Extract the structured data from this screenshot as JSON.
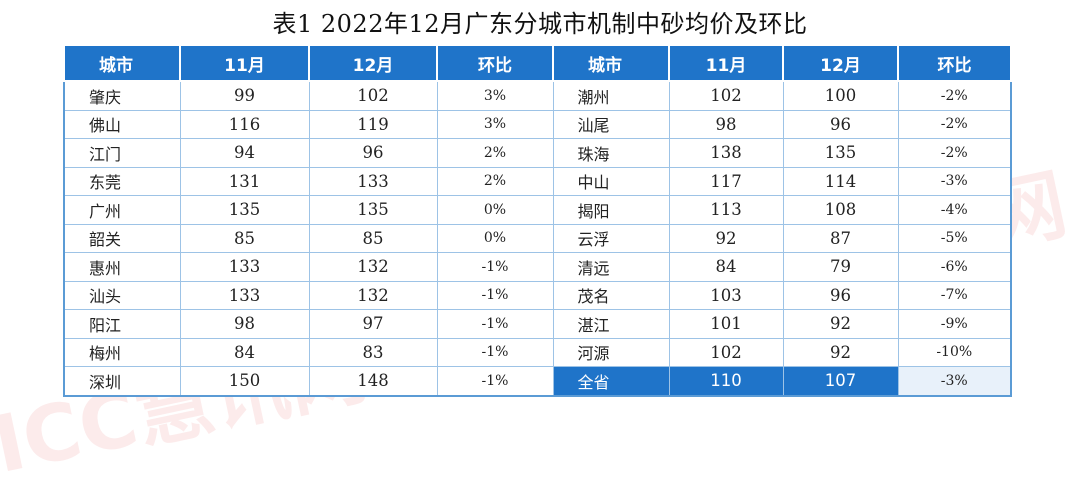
{
  "title": "表1  2022年12月广东分城市机制中砂均价及环比",
  "watermark": "ICC慧讯网",
  "headers": [
    "城市",
    "11月",
    "12月",
    "环比",
    "城市",
    "11月",
    "12月",
    "环比"
  ],
  "rows": [
    {
      "l": [
        "肇庆",
        "99",
        "102",
        "3%"
      ],
      "r": [
        "潮州",
        "102",
        "100",
        "-2%"
      ]
    },
    {
      "l": [
        "佛山",
        "116",
        "119",
        "3%"
      ],
      "r": [
        "汕尾",
        "98",
        "96",
        "-2%"
      ]
    },
    {
      "l": [
        "江门",
        "94",
        "96",
        "2%"
      ],
      "r": [
        "珠海",
        "138",
        "135",
        "-2%"
      ]
    },
    {
      "l": [
        "东莞",
        "131",
        "133",
        "2%"
      ],
      "r": [
        "中山",
        "117",
        "114",
        "-3%"
      ]
    },
    {
      "l": [
        "广州",
        "135",
        "135",
        "0%"
      ],
      "r": [
        "揭阳",
        "113",
        "108",
        "-4%"
      ]
    },
    {
      "l": [
        "韶关",
        "85",
        "85",
        "0%"
      ],
      "r": [
        "云浮",
        "92",
        "87",
        "-5%"
      ]
    },
    {
      "l": [
        "惠州",
        "133",
        "132",
        "-1%"
      ],
      "r": [
        "清远",
        "84",
        "79",
        "-6%"
      ]
    },
    {
      "l": [
        "汕头",
        "133",
        "132",
        "-1%"
      ],
      "r": [
        "茂名",
        "103",
        "96",
        "-7%"
      ]
    },
    {
      "l": [
        "阳江",
        "98",
        "97",
        "-1%"
      ],
      "r": [
        "湛江",
        "101",
        "92",
        "-9%"
      ]
    },
    {
      "l": [
        "梅州",
        "84",
        "83",
        "-1%"
      ],
      "r": [
        "河源",
        "102",
        "92",
        "-10%"
      ]
    },
    {
      "l": [
        "深圳",
        "150",
        "148",
        "-1%"
      ],
      "r": [
        "全省",
        "110",
        "107",
        "-3%"
      ]
    }
  ],
  "colors": {
    "header_bg": "#1f74c9",
    "up": "#c00000",
    "down": "#70ad47",
    "border": "#5b9bd5"
  }
}
